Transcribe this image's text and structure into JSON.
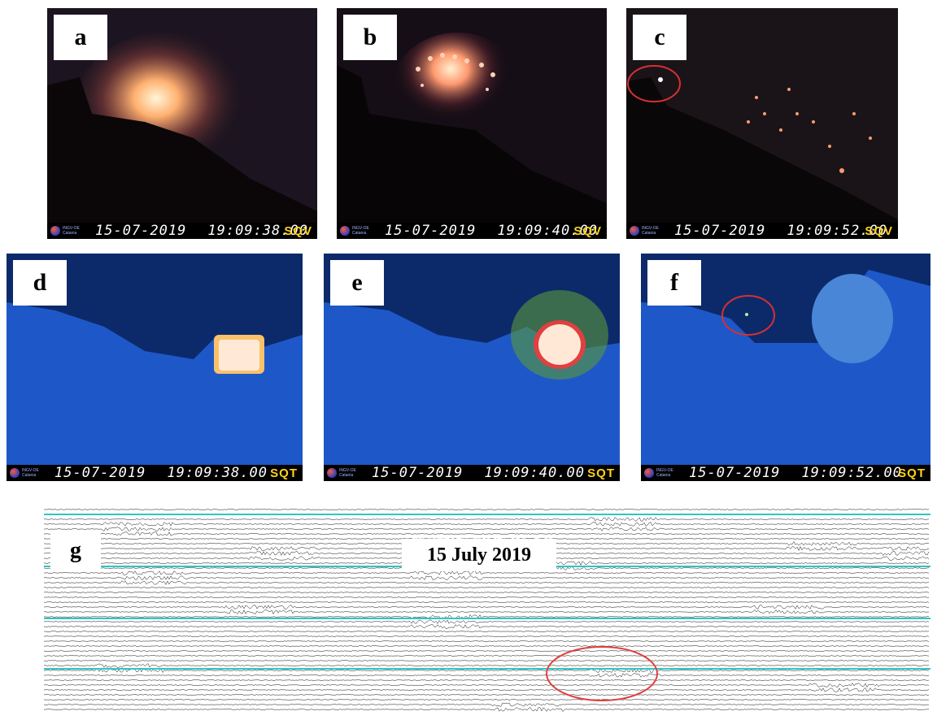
{
  "panels": [
    {
      "id": "a",
      "label": "a",
      "date": "15-07-2019",
      "time": "19:09:38.00",
      "camera": "SQV",
      "type": "visible",
      "logo": "INGV-OE Catania"
    },
    {
      "id": "b",
      "label": "b",
      "date": "15-07-2019",
      "time": "19:09:40.00",
      "camera": "SQV",
      "type": "visible",
      "logo": "INGV-OE Catania"
    },
    {
      "id": "c",
      "label": "c",
      "date": "15-07-2019",
      "time": "19:09:52.00",
      "camera": "SQV",
      "type": "visible",
      "logo": "INGV-OE Catania"
    },
    {
      "id": "d",
      "label": "d",
      "date": "15-07-2019",
      "time": "19:09:38.00",
      "camera": "SQT",
      "type": "thermal",
      "logo": "INGV-OE Catania"
    },
    {
      "id": "e",
      "label": "e",
      "date": "15-07-2019",
      "time": "19:09:40.00",
      "camera": "SQT",
      "type": "thermal",
      "logo": "INGV-OE Catania"
    },
    {
      "id": "f",
      "label": "f",
      "date": "15-07-2019",
      "time": "19:09:52.00",
      "camera": "SQT",
      "type": "thermal",
      "logo": "INGV-OE Catania"
    }
  ],
  "seismogram": {
    "label": "g",
    "date_title": "15 July 2019",
    "trace_color": "#111111",
    "hour_line_color": "#2fc6c6",
    "header_color": "#ff3a3a",
    "circle_color": "#e04040"
  },
  "colors": {
    "visible_sky": "#1c1420",
    "visible_ground": "#0b0709",
    "thermal_sky": "#0c2a6a",
    "thermal_ground": "#1e58c8",
    "highlight_circle": "#d63030"
  }
}
